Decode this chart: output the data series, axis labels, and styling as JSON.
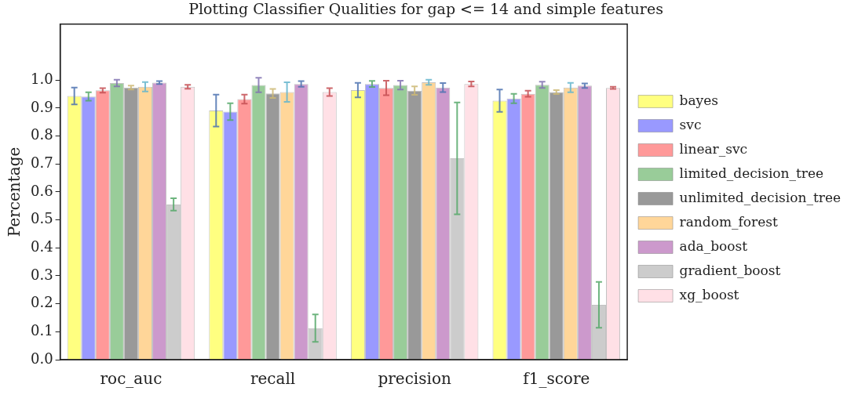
{
  "chart_data": {
    "type": "bar",
    "title": "Plotting Classifier Qualities for gap <= 14 and simple features",
    "ylabel": "Percentage",
    "categories": [
      "roc_auc",
      "recall",
      "precision",
      "f1_score"
    ],
    "series": [
      {
        "name": "bayes",
        "color": "#ffff80",
        "values": [
          0.943,
          0.891,
          0.964,
          0.926
        ],
        "errors": [
          0.03,
          0.057,
          0.026,
          0.04
        ]
      },
      {
        "name": "svc",
        "color": "#9999ff",
        "values": [
          0.941,
          0.887,
          0.986,
          0.934
        ],
        "errors": [
          0.015,
          0.03,
          0.011,
          0.017
        ]
      },
      {
        "name": "linear_svc",
        "color": "#ff9999",
        "values": [
          0.963,
          0.932,
          0.972,
          0.951
        ],
        "errors": [
          0.008,
          0.016,
          0.026,
          0.011
        ]
      },
      {
        "name": "limited_decision_tree",
        "color": "#99cc99",
        "values": [
          0.989,
          0.982,
          0.982,
          0.983
        ],
        "errors": [
          0.012,
          0.026,
          0.016,
          0.011
        ]
      },
      {
        "name": "unlimited_decision_tree",
        "color": "#999999",
        "values": [
          0.973,
          0.952,
          0.962,
          0.957
        ],
        "errors": [
          0.007,
          0.016,
          0.015,
          0.007
        ]
      },
      {
        "name": "random_forest",
        "color": "#ffd699",
        "values": [
          0.976,
          0.957,
          0.992,
          0.973
        ],
        "errors": [
          0.017,
          0.035,
          0.009,
          0.017
        ]
      },
      {
        "name": "ada_boost",
        "color": "#cc99cc",
        "values": [
          0.991,
          0.986,
          0.973,
          0.98
        ],
        "errors": [
          0.005,
          0.01,
          0.016,
          0.008
        ]
      },
      {
        "name": "gradient_boost",
        "color": "#cccccc",
        "values": [
          0.555,
          0.113,
          0.72,
          0.196
        ],
        "errors": [
          0.022,
          0.049,
          0.2,
          0.082
        ]
      },
      {
        "name": "xg_boost",
        "color": "#ffe0e6",
        "values": [
          0.976,
          0.957,
          0.986,
          0.972
        ],
        "errors": [
          0.007,
          0.014,
          0.009,
          0.004
        ]
      }
    ],
    "ylim": [
      0,
      1.2
    ],
    "yticks": [
      {
        "value": 0,
        "label": "0.0"
      },
      0.1,
      0.2,
      0.3,
      0.4,
      0.5,
      0.6,
      0.7,
      0.8,
      0.9,
      {
        "value": 1,
        "label": "1.0"
      }
    ],
    "legend": "right",
    "grid": false
  }
}
